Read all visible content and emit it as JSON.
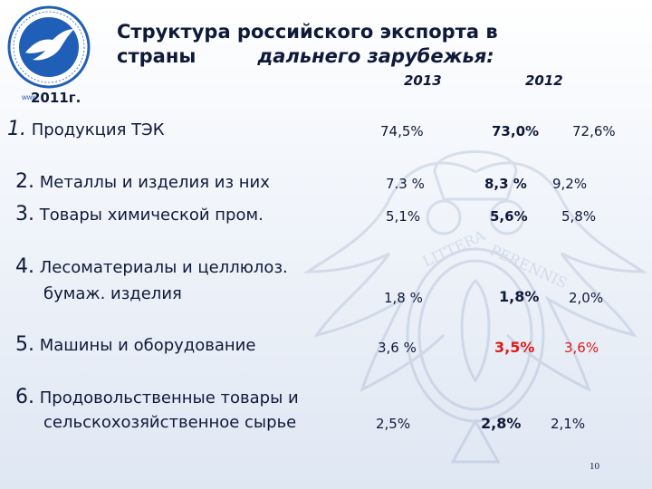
{
  "logo_text": "www.",
  "title_line1": "Структура российского экспорта в",
  "title_line2a": "страны",
  "title_line2b": "дальнего зарубежья:",
  "year_a": "2013",
  "year_b": "2012",
  "year_c": "2011г.",
  "rows": [
    {
      "num": "1.",
      "label": "Продукция ТЭК",
      "v1": "74,5%",
      "v2": "73,0%",
      "v3": "72,6%"
    },
    {
      "num": "2.",
      "label": "Металлы и изделия из них",
      "v1": "7.3 %",
      "v2": "8,3 %",
      "v3": "9,2%"
    },
    {
      "num": "3.",
      "label": "Товары химической пром",
      "label_dot": ".",
      "v1": "5,1%",
      "v2": "5,6%",
      "v3": "5,8%"
    },
    {
      "num": "4.",
      "label": "Лесоматериалы и целлюлоз.",
      "label2": "бумаж. изделия",
      "v1": "1,8 %",
      "v2": "1,8%",
      "v3": "2,0%"
    },
    {
      "num": "5.",
      "label": "Машины и оборудование",
      "v1": "3,6 %",
      "v2": "3,5%",
      "v3": "3,6%"
    },
    {
      "num": "6.",
      "label": "Продовольственные товары и",
      "label2": "сельскохозяйственное сырье",
      "v1": "2,5%",
      "v2": "2,8%",
      "v3": "2,1%"
    }
  ],
  "page_number": "10",
  "colors": {
    "text": "#0f1a3a",
    "highlight": "#e01a1a",
    "logo_blue": "#1f5fb8"
  }
}
